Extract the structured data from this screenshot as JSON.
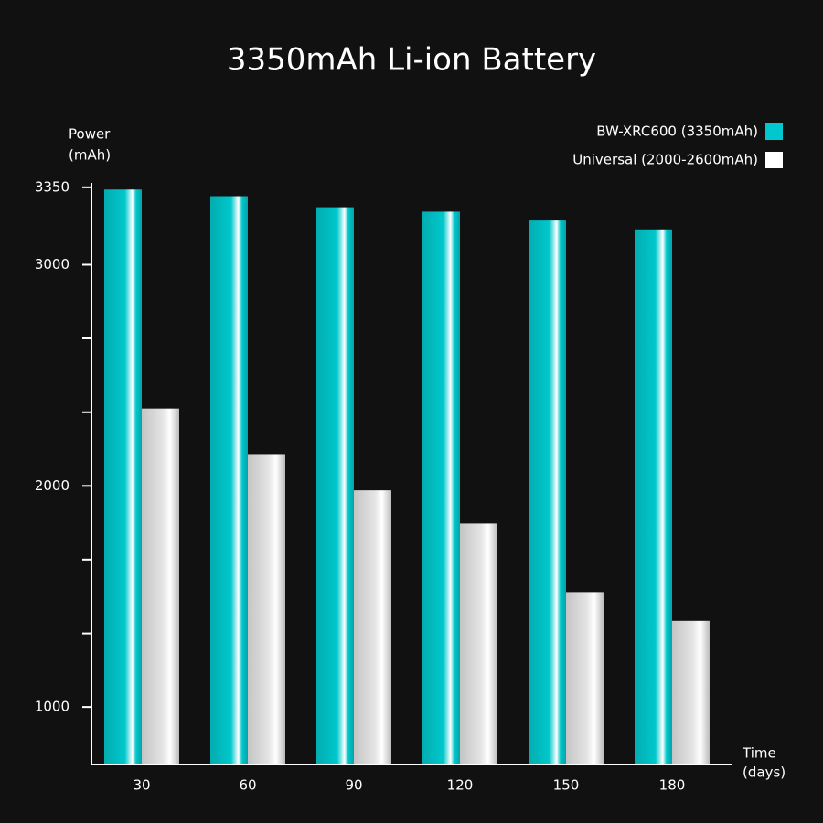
{
  "chart_data": {
    "type": "bar",
    "title": "3350mAh Li-ion Battery",
    "y_label": [
      "Power",
      "(mAh)"
    ],
    "x_label": [
      "Time",
      "(days)"
    ],
    "categories": [
      "30",
      "60",
      "90",
      "120",
      "150",
      "180"
    ],
    "series": [
      {
        "name": "BW-XRC600 (3350mAh)",
        "color": "#00c8cc",
        "values": [
          3340,
          3310,
          3260,
          3240,
          3200,
          3160
        ]
      },
      {
        "name": "Universal (2000-2600mAh)",
        "color": "#e4e4e4",
        "values": [
          2350,
          2140,
          1980,
          1830,
          1520,
          1390
        ]
      }
    ],
    "ylim": [
      740,
      3370
    ],
    "yticks": [
      1000,
      2000,
      3000,
      3350
    ],
    "minor_yticks": [
      1333,
      1667,
      2333,
      2667
    ],
    "legend": "top-right"
  }
}
